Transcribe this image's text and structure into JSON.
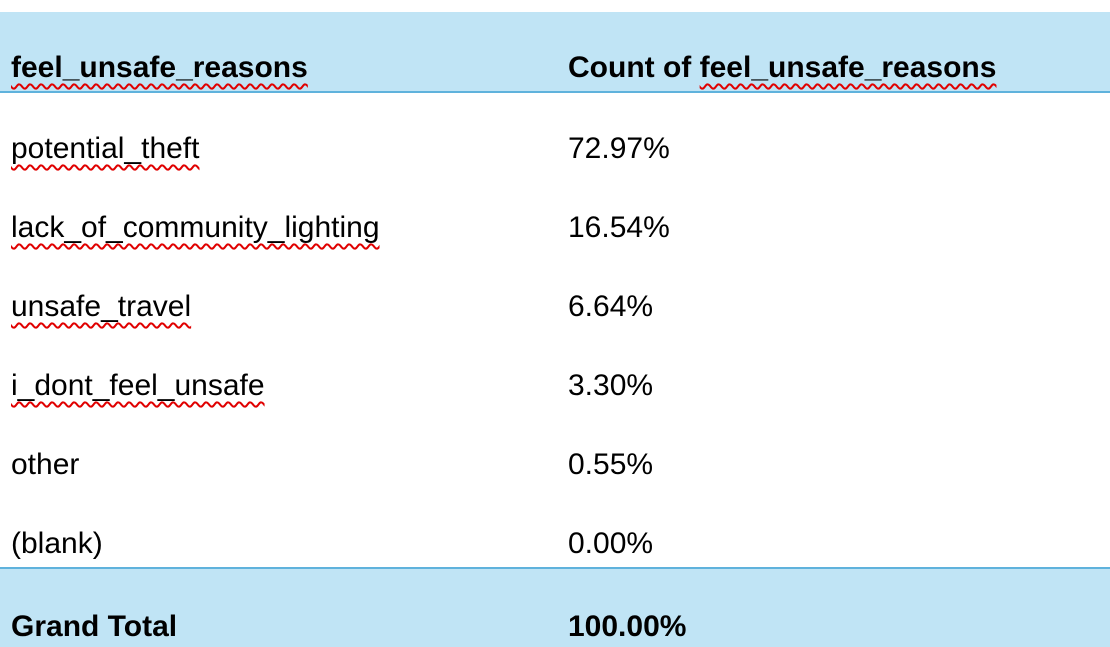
{
  "table": {
    "header": {
      "row_label": "feel_unsafe_reasons",
      "value_label_prefix": "Count of ",
      "value_label_field": "feel_unsafe_reasons"
    },
    "rows": [
      {
        "label": "potential_theft",
        "value": "72.97%"
      },
      {
        "label": "lack_of_community_lighting",
        "value": "16.54%"
      },
      {
        "label": "unsafe_travel",
        "value": "6.64%"
      },
      {
        "label": "i_dont_feel_unsafe",
        "value": "3.30%"
      },
      {
        "label": "other",
        "value": "0.55%"
      },
      {
        "label": "(blank)",
        "value": "0.00%"
      }
    ],
    "total": {
      "label": "Grand Total",
      "value": "100.00%"
    }
  }
}
